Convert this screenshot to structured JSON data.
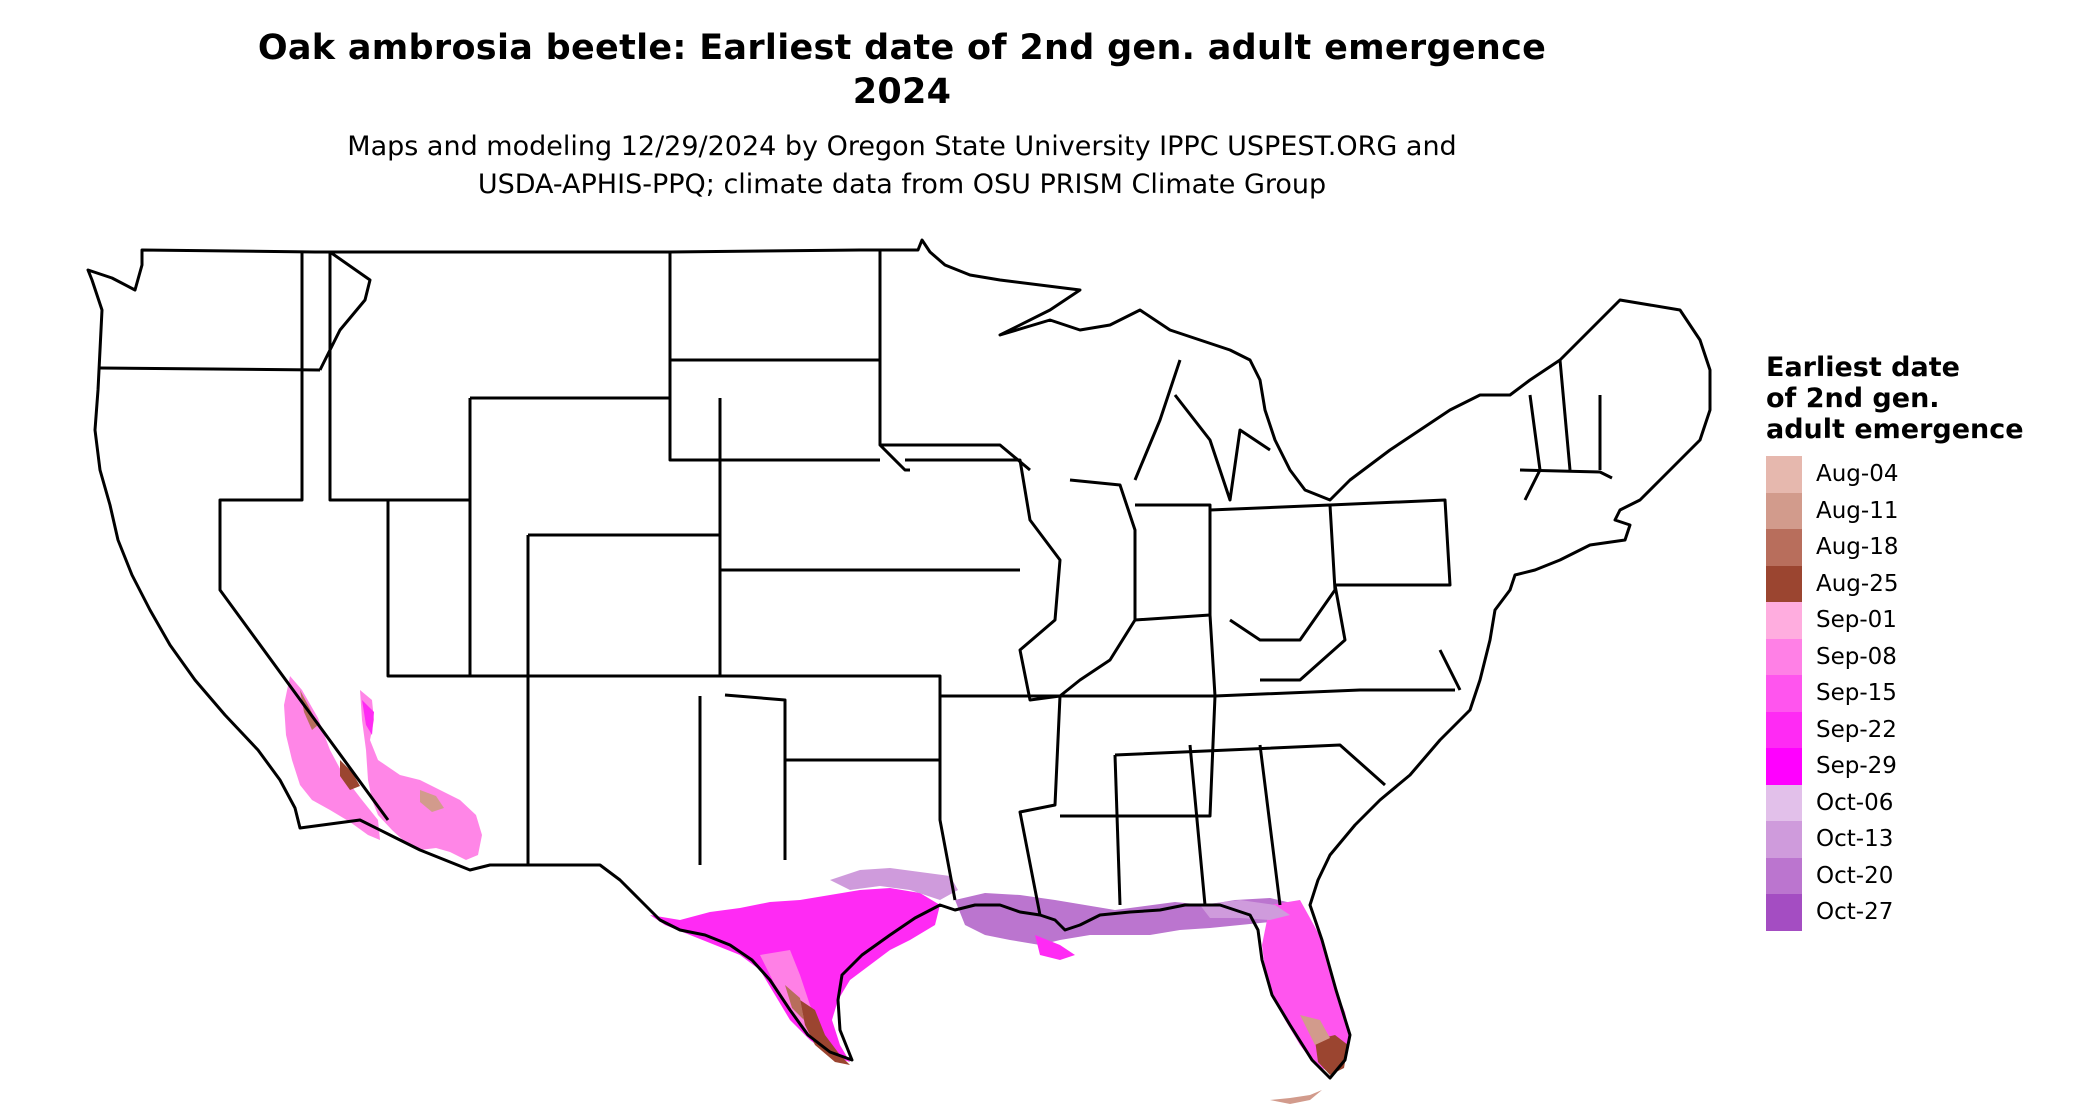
{
  "map": {
    "title_line1": "Oak ambrosia beetle: Earliest date of 2nd gen. adult emergence",
    "title_line2": "2024",
    "subtitle_line1": "Maps and modeling 12/29/2024 by Oregon State University IPPC USPEST.ORG and",
    "subtitle_line2": "USDA-APHIS-PPQ; climate data from OSU PRISM Climate Group",
    "region": "Contiguous United States",
    "boundaries": "state-outlines",
    "background_color": "#ffffff",
    "boundary_color": "#000000"
  },
  "legend": {
    "title_line1": "Earliest date",
    "title_line2": "of 2nd gen.",
    "title_line3": "adult emergence",
    "items": [
      {
        "label": "Aug-04",
        "color": "#E6B8AE"
      },
      {
        "label": "Aug-11",
        "color": "#D29B8C"
      },
      {
        "label": "Aug-18",
        "color": "#B86E5C"
      },
      {
        "label": "Aug-25",
        "color": "#9B4530"
      },
      {
        "label": "Sep-01",
        "color": "#FFADDF"
      },
      {
        "label": "Sep-08",
        "color": "#FF80E6"
      },
      {
        "label": "Sep-15",
        "color": "#FF55EE"
      },
      {
        "label": "Sep-22",
        "color": "#FF2AF4"
      },
      {
        "label": "Sep-29",
        "color": "#FF00FF"
      },
      {
        "label": "Oct-06",
        "color": "#E2C0EA"
      },
      {
        "label": "Oct-13",
        "color": "#CF9BDC"
      },
      {
        "label": "Oct-20",
        "color": "#BB75CF"
      },
      {
        "label": "Oct-27",
        "color": "#A44DC2"
      }
    ]
  }
}
